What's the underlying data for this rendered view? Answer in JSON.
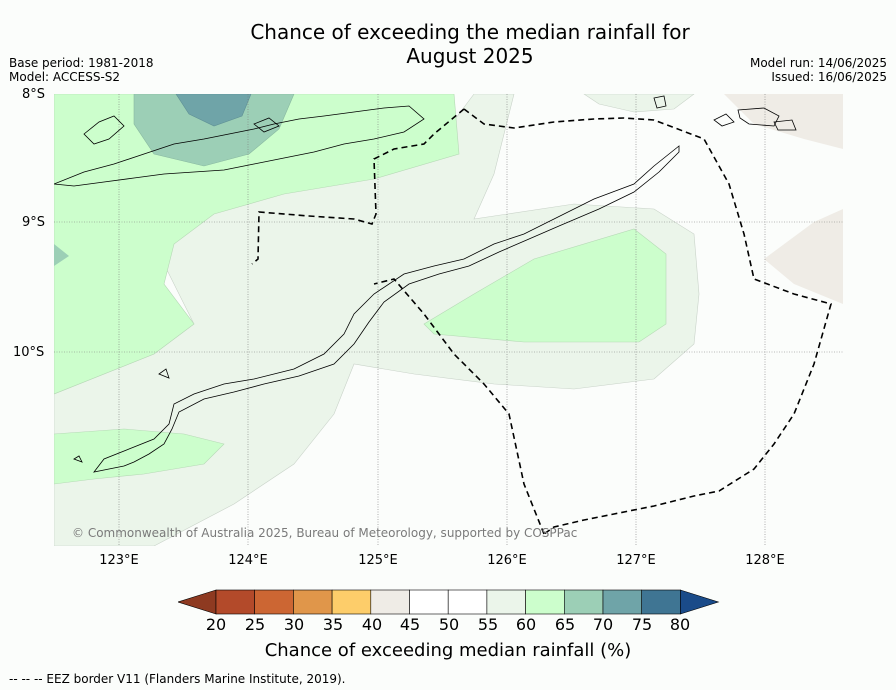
{
  "title_line1": "Chance of exceeding the median rainfall for",
  "title_line2": "August 2025",
  "meta_left": {
    "base_period": "Base period: 1981-2018",
    "model": "Model: ACCESS-S2"
  },
  "meta_right": {
    "model_run": "Model run: 14/06/2025",
    "issued": "Issued: 16/06/2025"
  },
  "lat_labels": [
    "8°S",
    "9°S",
    "10°S"
  ],
  "lon_labels": [
    "123°E",
    "124°E",
    "125°E",
    "126°E",
    "127°E",
    "128°E"
  ],
  "copyright": "© Commonwealth of Australia 2025, Bureau of Meteorology, supported by COSPPac",
  "colorbar": {
    "ticks": [
      "20",
      "25",
      "30",
      "35",
      "40",
      "45",
      "50",
      "55",
      "60",
      "65",
      "70",
      "75",
      "80"
    ],
    "colors": [
      "#8e3a21",
      "#b34a2a",
      "#cc6633",
      "#e0964a",
      "#fdcd6a",
      "#efece6",
      "#ffffff",
      "#ffffff",
      "#ebf5ea",
      "#ccfecc",
      "#9ccfb6",
      "#6fa4a8",
      "#3f7593",
      "#1a4b89"
    ],
    "label": "Chance of exceeding median rainfall (%)"
  },
  "footer": "--  --  -- EEZ border V11 (Flanders Marine Institute, 2019)."
}
